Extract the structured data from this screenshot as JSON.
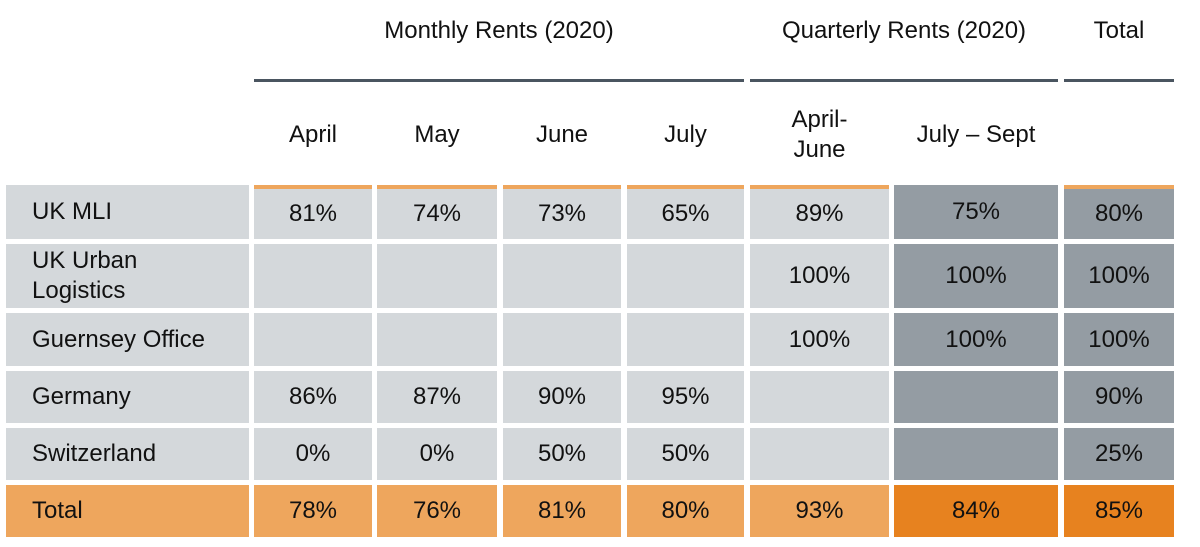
{
  "chart_data": {
    "type": "table",
    "column_groups": [
      {
        "label": "Monthly Rents (2020)"
      },
      {
        "label": "Quarterly Rents (2020)"
      },
      {
        "label": "Total"
      }
    ],
    "columns": [
      "April",
      "May",
      "June",
      "July",
      "April-\nJune",
      "July – Sept",
      ""
    ],
    "rows": [
      {
        "label": "UK MLI",
        "values": [
          "81%",
          "74%",
          "73%",
          "65%",
          "89%",
          "75%",
          "80%"
        ]
      },
      {
        "label": "UK Urban\nLogistics",
        "values": [
          "",
          "",
          "",
          "",
          "100%",
          "100%",
          "100%"
        ]
      },
      {
        "label": "Guernsey Office",
        "values": [
          "",
          "",
          "",
          "",
          "100%",
          "100%",
          "100%"
        ]
      },
      {
        "label": "Germany",
        "values": [
          "86%",
          "87%",
          "90%",
          "95%",
          "",
          "",
          "90%"
        ]
      },
      {
        "label": "Switzerland",
        "values": [
          "0%",
          "0%",
          "50%",
          "50%",
          "",
          "",
          "25%"
        ]
      },
      {
        "label": "Total",
        "values": [
          "78%",
          "76%",
          "81%",
          "80%",
          "93%",
          "84%",
          "85%"
        ]
      }
    ],
    "colors": {
      "cell": "#d4d8db",
      "cell_dark": "#949ca3",
      "total_row": "#eea65d",
      "total_highlight": "#e7821f",
      "rule": "#4a5560"
    }
  }
}
